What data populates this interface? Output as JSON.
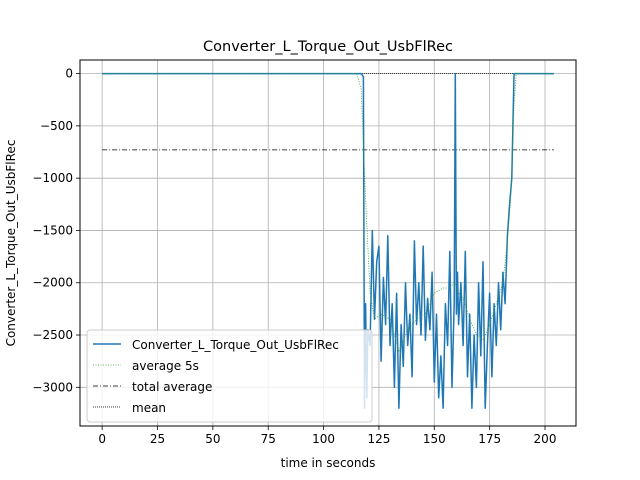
{
  "chart_data": {
    "type": "line",
    "title": "Converter_L_Torque_Out_UsbFlRec",
    "xlabel": "time in seconds",
    "ylabel": "Converter_L_Torque_Out_UsbFlRec",
    "xlim": [
      -10,
      214
    ],
    "ylim": [
      -3370,
      130
    ],
    "xticks": [
      0,
      25,
      50,
      75,
      100,
      125,
      150,
      175,
      200
    ],
    "yticks": [
      0,
      -500,
      -1000,
      -1500,
      -2000,
      -2500,
      -3000
    ],
    "ytick_labels": [
      "0",
      "−500",
      "−1000",
      "−1500",
      "−2000",
      "−2500",
      "−3000"
    ],
    "grid": true,
    "legend_position": "lower-left",
    "colors": {
      "signal": "#1f77b4",
      "average": "#2ca02c",
      "total_average": "#000000",
      "mean": "#000000",
      "grid": "#b0b0b0"
    },
    "series": [
      {
        "name": "Converter_L_Torque_Out_UsbFlRec",
        "style": "solid",
        "x": [
          0,
          116,
          117,
          118,
          118.5,
          119,
          119.5,
          120,
          121,
          122,
          123,
          124,
          125,
          126,
          127,
          128,
          129,
          130,
          131,
          132,
          133,
          134,
          135,
          136,
          137,
          138,
          139,
          140,
          141,
          142,
          143,
          144,
          145,
          146,
          147,
          148,
          149,
          150,
          151,
          152,
          153,
          154,
          155,
          156,
          157,
          158,
          159,
          159.5,
          160,
          160.5,
          161,
          162,
          163,
          164,
          165,
          166,
          167,
          168,
          169,
          170,
          171,
          172,
          173,
          174,
          175,
          176,
          177,
          178,
          179,
          180,
          181,
          182,
          183,
          184,
          185,
          186,
          187,
          204
        ],
        "y": [
          0,
          0,
          0,
          -30,
          -3200,
          -2200,
          -3100,
          -2450,
          -2600,
          -1500,
          -2350,
          -1800,
          -1650,
          -2750,
          -1950,
          -2400,
          -1550,
          -2600,
          -2200,
          -3000,
          -2100,
          -3200,
          -2400,
          -2800,
          -2000,
          -2600,
          -2300,
          -2900,
          -1600,
          -2400,
          -2000,
          -2500,
          -1650,
          -2550,
          -2150,
          -2450,
          -1900,
          -2950,
          -2300,
          -3100,
          -2700,
          -3200,
          -2200,
          -2600,
          -1700,
          -3000,
          -2200,
          0,
          -2300,
          -1900,
          -2400,
          -2000,
          -2600,
          -1700,
          -2900,
          -2300,
          -3200,
          -2500,
          -3000,
          -2000,
          -2700,
          -1800,
          -3200,
          -2600,
          -2100,
          -2900,
          -2200,
          -2600,
          -2000,
          -2450,
          -1900,
          -2200,
          -1550,
          -1250,
          -1000,
          0,
          0,
          0
        ]
      },
      {
        "name": "average 5s",
        "style": "dotted",
        "x": [
          0,
          115,
          117,
          119,
          121,
          123,
          126,
          130,
          134,
          138,
          142,
          146,
          150,
          154,
          157,
          159,
          161,
          163,
          166,
          169,
          172,
          175,
          178,
          181,
          183,
          184.5,
          186,
          187,
          204
        ],
        "y": [
          0,
          0,
          -150,
          -1200,
          -2100,
          -2350,
          -2300,
          -2350,
          -2650,
          -2450,
          -2350,
          -2300,
          -2100,
          -2050,
          -2050,
          -2000,
          -2100,
          -2150,
          -2350,
          -2500,
          -2550,
          -2400,
          -2200,
          -2000,
          -1600,
          -1200,
          -300,
          0,
          0
        ]
      },
      {
        "name": "total average",
        "style": "dashdot",
        "x": [
          0,
          204
        ],
        "y": [
          -730,
          -730
        ]
      },
      {
        "name": "mean",
        "style": "dotted",
        "x": [
          0,
          204
        ],
        "y": [
          0,
          0
        ]
      }
    ]
  }
}
